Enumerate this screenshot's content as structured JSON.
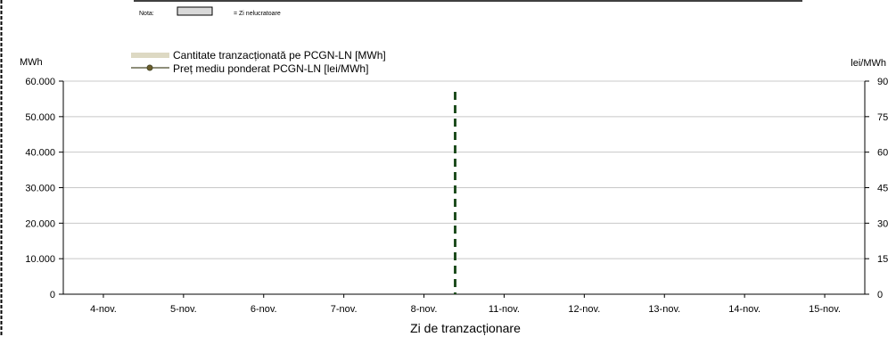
{
  "note": {
    "label": "Nota:",
    "swatch_color": "#d9d9d9",
    "text": "= Zi nelucratoare"
  },
  "chart_data": {
    "type": "bar",
    "xlabel": "Zi de tranzacționare",
    "y_left_unit": "MWh",
    "y_right_unit": "lei/MWh",
    "categories": [
      "4-nov.",
      "5-nov.",
      "6-nov.",
      "7-nov.",
      "8-nov.",
      "11-nov.",
      "12-nov.",
      "13-nov.",
      "14-nov.",
      "15-nov."
    ],
    "ylim_left": [
      0,
      60000
    ],
    "ylim_right": [
      0,
      90
    ],
    "yticks_left": [
      "0",
      "10.000",
      "20.000",
      "30.000",
      "40.000",
      "50.000",
      "60.000"
    ],
    "yticks_right": [
      "0",
      "15",
      "30",
      "45",
      "60",
      "75",
      "90"
    ],
    "grid": true,
    "legend_position": "top-left",
    "series": [
      {
        "name": "Cantitate tranzacționată pe PCGN-LN [MWh]",
        "kind": "bar",
        "axis": "left",
        "color": "#ddd9c3",
        "values": [
          0,
          0,
          0,
          0,
          0,
          0,
          0,
          0,
          0,
          0
        ]
      },
      {
        "name": "Preț mediu ponderat PCGN-LN [lei/MWh]",
        "kind": "line",
        "axis": "right",
        "color": "#4a4a2a",
        "marker_color": "#6b5d2a",
        "values": [
          null,
          null,
          null,
          null,
          null,
          null,
          null,
          null,
          null,
          null
        ]
      }
    ],
    "marker_line": {
      "between": [
        "8-nov.",
        "11-nov."
      ],
      "style": "dashed",
      "color": "#1f4d1f"
    }
  }
}
